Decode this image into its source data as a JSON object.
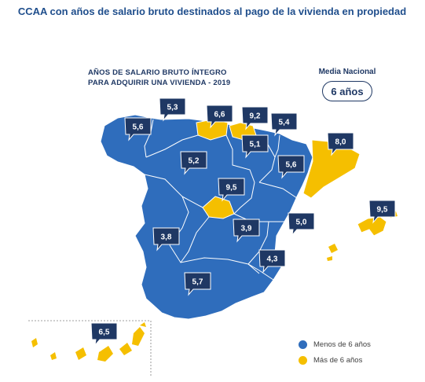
{
  "title": "CCAA con años de salario bruto destinados al pago de la vivienda en propiedad",
  "map_title_line1": "AÑOS DE SALARIO BRUTO ÍNTEGRO",
  "map_title_line2": "PARA ADQUIRIR UNA VIVIENDA - 2019",
  "national": {
    "label": "Media Nacional",
    "value": "6 años"
  },
  "legend": [
    {
      "label": "Menos de 6 años",
      "color": "#2f6dbc"
    },
    {
      "label": "Más de 6 años",
      "color": "#f5bf00"
    }
  ],
  "colors": {
    "below": "#2f6dbc",
    "above": "#f5bf00",
    "callout": "#1f3864",
    "border": "#ffffff"
  },
  "regions": [
    {
      "value": "5,6",
      "above": false
    },
    {
      "value": "5,3",
      "above": false
    },
    {
      "value": "6,6",
      "above": true
    },
    {
      "value": "9,2",
      "above": true
    },
    {
      "value": "5,4",
      "above": false
    },
    {
      "value": "5,1",
      "above": false
    },
    {
      "value": "8,0",
      "above": true
    },
    {
      "value": "5,2",
      "above": false
    },
    {
      "value": "5,6",
      "above": false
    },
    {
      "value": "9,5",
      "above": true
    },
    {
      "value": "9,5",
      "above": true
    },
    {
      "value": "5,0",
      "above": false
    },
    {
      "value": "3,8",
      "above": false
    },
    {
      "value": "3,9",
      "above": false
    },
    {
      "value": "4,3",
      "above": false
    },
    {
      "value": "5,7",
      "above": false
    },
    {
      "value": "6,5",
      "above": true
    }
  ]
}
